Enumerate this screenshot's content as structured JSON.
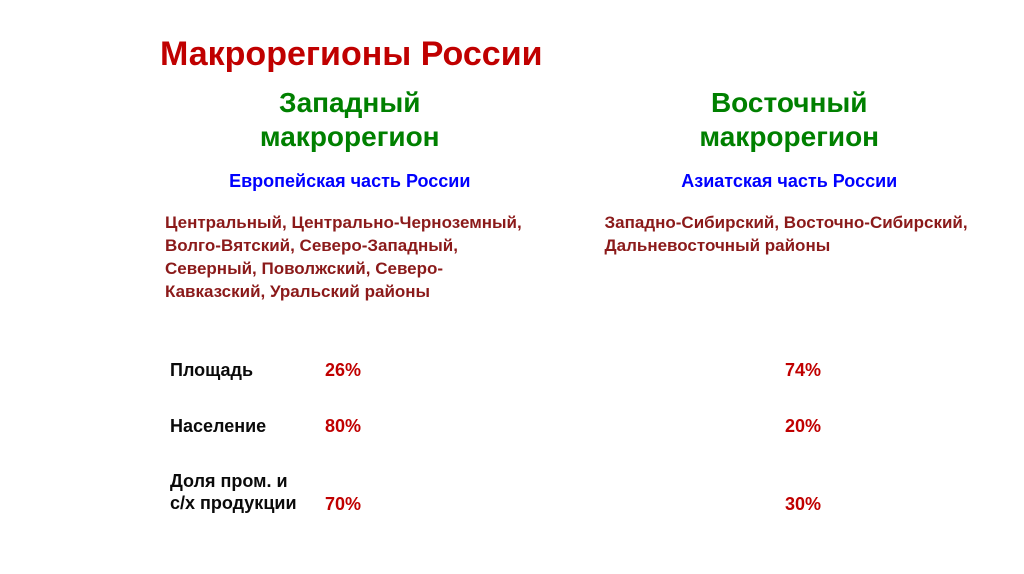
{
  "title": "Макрорегионы России",
  "colors": {
    "title": "#c00000",
    "header": "#008000",
    "subtitle": "#0000ff",
    "districts": "#8b1a1a",
    "label": "#0a0a0a",
    "value": "#c00000"
  },
  "west": {
    "header_line1": "Западный",
    "header_line2": "макрорегион",
    "subtitle": "Европейская часть России",
    "districts": "Центральный, Центрально-Черноземный, Волго-Вятский, Северо-Западный, Северный, Поволжский, Северо-Кавказский, Уральский районы"
  },
  "east": {
    "header_line1": "Восточный",
    "header_line2": "макрорегион",
    "subtitle": "Азиатская часть России",
    "districts": "Западно-Сибирский, Восточно-Сибирский, Дальневосточный районы"
  },
  "stats": {
    "area": {
      "label": "Площадь",
      "west": "26%",
      "east": "74%"
    },
    "population": {
      "label": "Население",
      "west": "80%",
      "east": "20%"
    },
    "production": {
      "label_line1": "Доля пром. и",
      "label_line2": "с/х продукции",
      "west": "70%",
      "east": "30%"
    }
  }
}
